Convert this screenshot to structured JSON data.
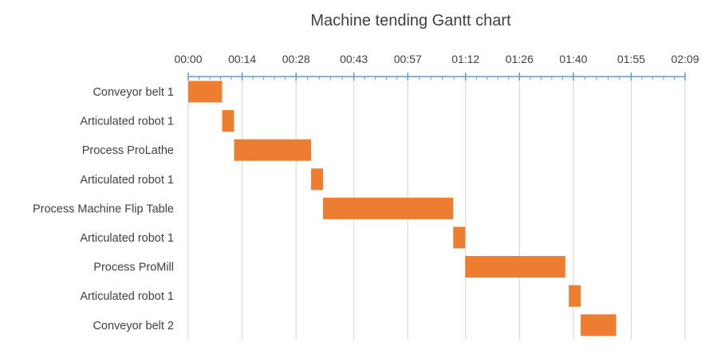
{
  "chart_data": {
    "type": "bar",
    "orientation": "horizontal",
    "subtype": "gantt",
    "title": "Machine tending Gantt chart",
    "xlabel": "",
    "ylabel": "",
    "x_axis_position": "top",
    "x_unit": "seconds",
    "xlim": [
      0,
      129
    ],
    "x_tick_values": [
      0,
      14,
      28,
      43,
      57,
      72,
      86,
      100,
      115,
      129
    ],
    "x_tick_labels": [
      "00:00",
      "00:14",
      "00:28",
      "00:43",
      "00:57",
      "01:12",
      "01:26",
      "01:40",
      "01:55",
      "02:09"
    ],
    "grid": true,
    "legend": "none",
    "colors": {
      "bar": "#ED7D31",
      "axis": "#5B9BD5",
      "grid": "#D9D9D9",
      "text": "#404040"
    },
    "categories": [
      "Conveyor belt 1",
      "Articulated robot 1",
      "Process ProLathe",
      "Articulated robot 1",
      "Process Machine Flip Table",
      "Articulated robot 1",
      "Process ProMill",
      "Articulated robot 1",
      "Conveyor belt 2"
    ],
    "tasks": [
      {
        "name": "Conveyor belt 1",
        "start": 0.0,
        "duration": 8.8
      },
      {
        "name": "Articulated robot 1",
        "start": 8.8,
        "duration": 3.1
      },
      {
        "name": "Process ProLathe",
        "start": 11.9,
        "duration": 20.0
      },
      {
        "name": "Articulated robot 1",
        "start": 31.9,
        "duration": 3.1
      },
      {
        "name": "Process Machine Flip Table",
        "start": 35.0,
        "duration": 33.8
      },
      {
        "name": "Articulated robot 1",
        "start": 68.8,
        "duration": 3.1
      },
      {
        "name": "Process ProMill",
        "start": 71.9,
        "duration": 26.0
      },
      {
        "name": "Articulated robot 1",
        "start": 98.8,
        "duration": 3.1
      },
      {
        "name": "Conveyor belt 2",
        "start": 101.9,
        "duration": 9.2
      }
    ]
  }
}
